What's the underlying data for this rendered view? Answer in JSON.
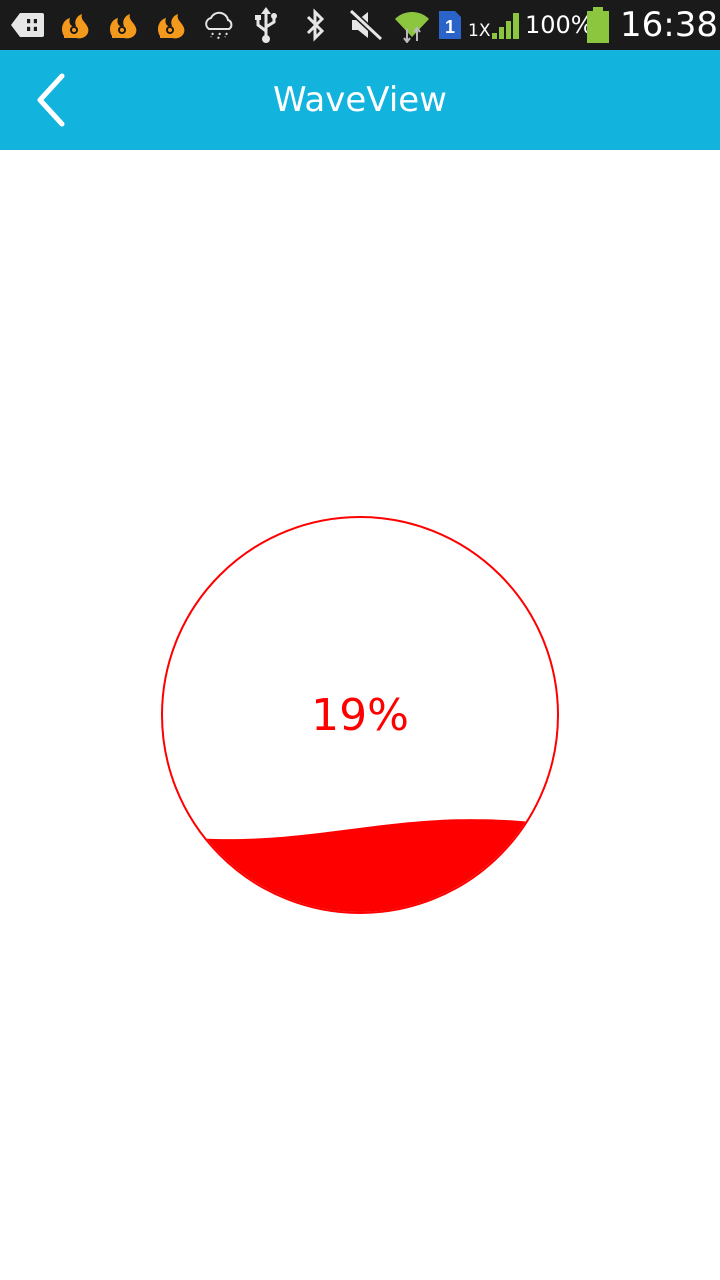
{
  "status_bar": {
    "icons": [
      "add-notification-icon",
      "uc-browser-icon",
      "uc-browser-icon",
      "uc-browser-icon",
      "weather-rain-icon",
      "usb-icon",
      "bluetooth-icon",
      "sound-muted-icon",
      "wifi-icon",
      "sim-1-icon",
      "signal-icon",
      "battery-icon"
    ],
    "sim_slot": "1",
    "signal_label": "1X",
    "battery": "100%",
    "time": "16:38"
  },
  "app_bar": {
    "title": "WaveView",
    "back_icon": "chevron-left-icon"
  },
  "wave_view": {
    "progress_label": "19%",
    "progress": 0.19,
    "colors": {
      "stroke": "#ff0000",
      "fill": "#ff0000",
      "text": "#ff0000"
    }
  },
  "colors": {
    "status_bar_bg": "#1a1a1a",
    "app_bar_bg": "#12b3dd",
    "uc_icon": "#f39a1d",
    "wifi": "#8cc63f",
    "signal": "#8cc63f",
    "battery": "#8cc63f",
    "sim": "#2a64c8"
  }
}
